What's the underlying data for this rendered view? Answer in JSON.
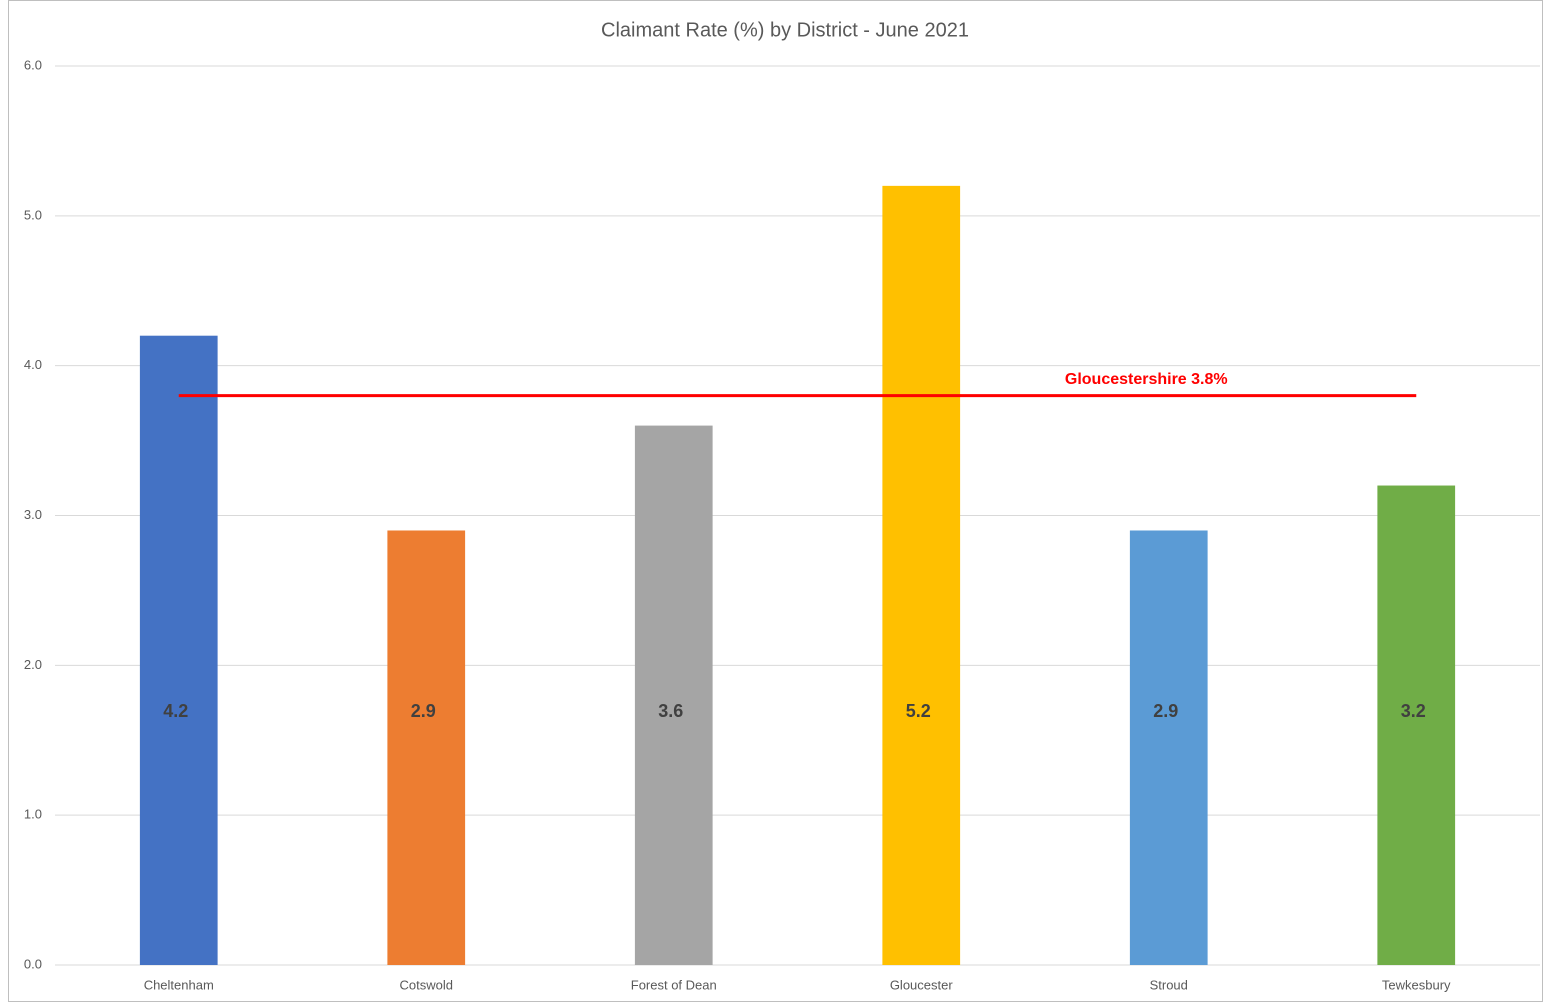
{
  "chart_data": {
    "type": "bar",
    "title": "Claimant Rate (%) by District - June 2021",
    "categories": [
      "Cheltenham",
      "Cotswold",
      "Forest of Dean",
      "Gloucester",
      "Stroud",
      "Tewkesbury"
    ],
    "values": [
      4.2,
      2.9,
      3.6,
      5.2,
      2.9,
      3.2
    ],
    "colors": [
      "#4472c4",
      "#ed7d31",
      "#a5a5a5",
      "#ffc000",
      "#5b9bd5",
      "#70ad47"
    ],
    "ylim": [
      0,
      6
    ],
    "yticks": [
      {
        "value": 0,
        "label": "0.0"
      },
      {
        "value": 1,
        "label": "1.0"
      },
      {
        "value": 2,
        "label": "2.0"
      },
      {
        "value": 3,
        "label": "3.0"
      },
      {
        "value": 4,
        "label": "4.0"
      },
      {
        "value": 5,
        "label": "5.0"
      },
      {
        "value": 6,
        "label": "6.0"
      }
    ],
    "grid": true,
    "reference_line": {
      "value": 3.8,
      "label": "Gloucestershire 3.8%",
      "color": "#ff0000"
    }
  }
}
